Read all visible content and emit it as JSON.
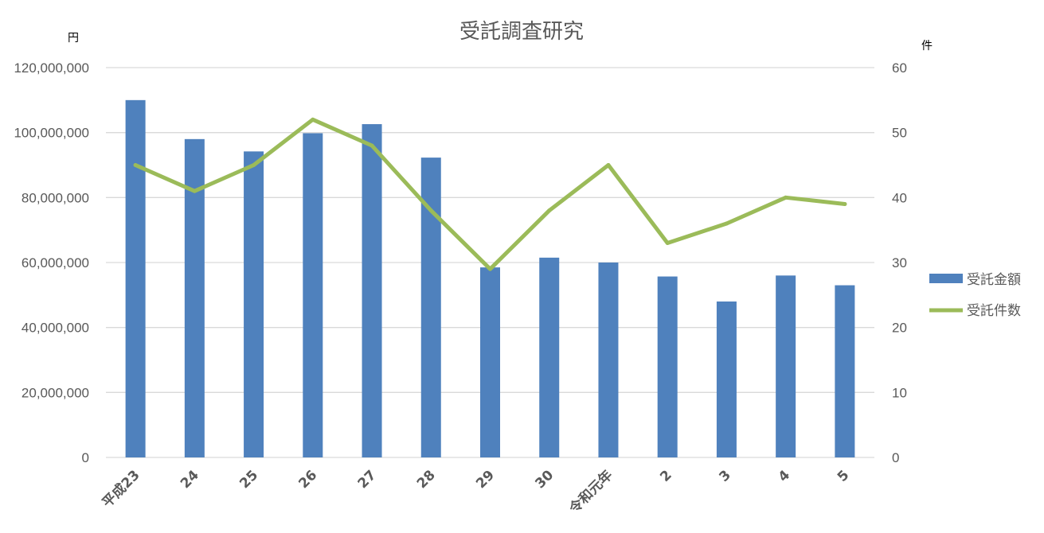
{
  "chart_data": {
    "type": "bar",
    "title": "受託調査研究",
    "left_axis_unit": "円",
    "right_axis_unit": "件",
    "categories": [
      "平成23",
      "24",
      "25",
      "26",
      "27",
      "28",
      "29",
      "30",
      "令和元年",
      "2",
      "3",
      "4",
      "5"
    ],
    "ylim_left": [
      0,
      120000000
    ],
    "yticks_left": [
      "0",
      "20,000,000",
      "40,000,000",
      "60,000,000",
      "80,000,000",
      "100,000,000",
      "120,000,000"
    ],
    "ylim_right": [
      0,
      60
    ],
    "yticks_right": [
      "0",
      "10",
      "20",
      "30",
      "40",
      "50",
      "60"
    ],
    "grid": true,
    "legend_position": "right",
    "series": [
      {
        "name": "受託金額",
        "type": "bar",
        "axis": "left",
        "color": "#4f81bd",
        "values": [
          110000000,
          98000000,
          94200000,
          99800000,
          102600000,
          92300000,
          58500000,
          61500000,
          60000000,
          55700000,
          48000000,
          56000000,
          53000000
        ]
      },
      {
        "name": "受託件数",
        "type": "line",
        "axis": "right",
        "color": "#9bbb59",
        "values": [
          45,
          41,
          45,
          52,
          48,
          38,
          29,
          38,
          45,
          33,
          36,
          40,
          39
        ]
      }
    ]
  }
}
